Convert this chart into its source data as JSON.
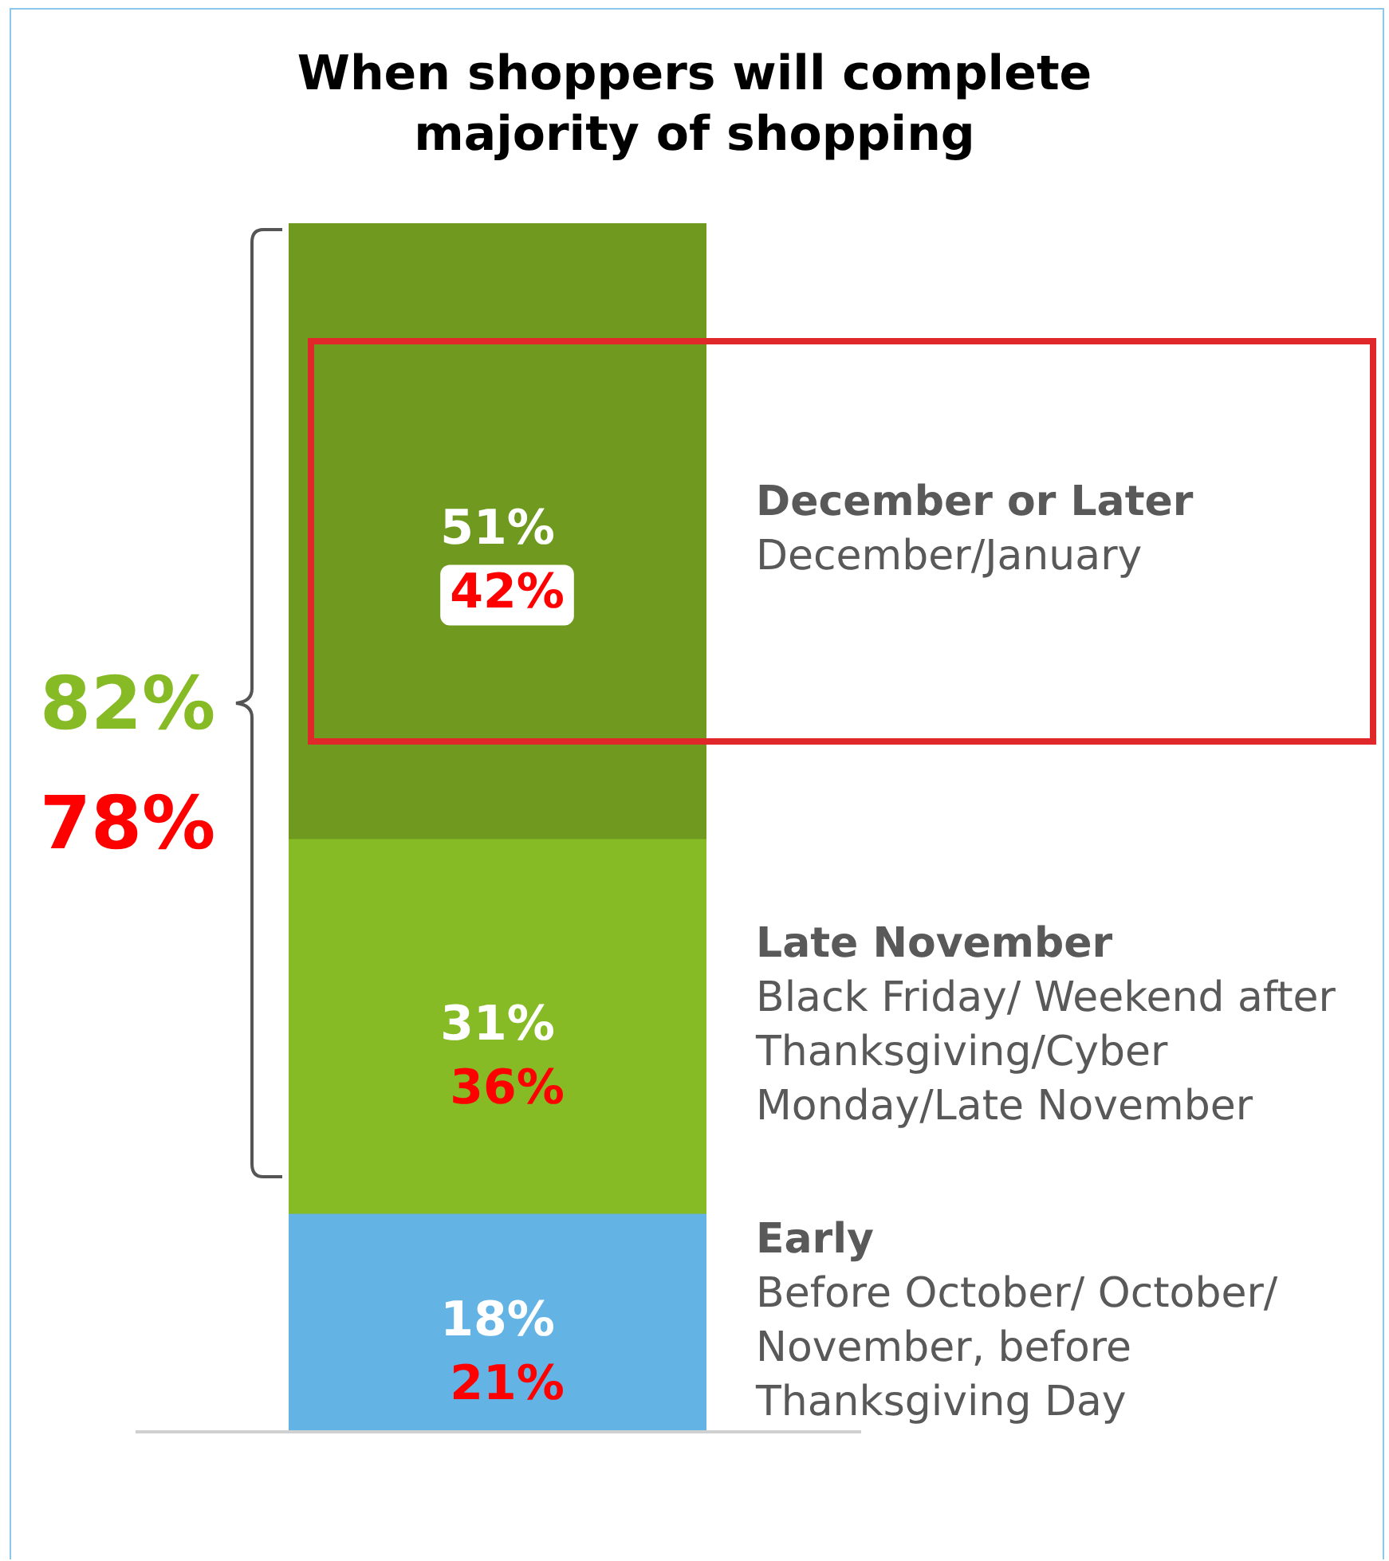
{
  "chart_data": {
    "type": "bar",
    "title": "When shoppers will complete majority of shopping",
    "categories": [
      null
    ],
    "stacked": true,
    "ylim": [
      0,
      100
    ],
    "tick_labels": false,
    "legend": false,
    "series": [
      {
        "name": "Early",
        "color": "#63b4e4",
        "values": [
          18
        ],
        "value_labels": [
          "18%"
        ]
      },
      {
        "name": "Late November",
        "color": "#86bb25",
        "values": [
          31
        ],
        "value_labels": [
          "31%"
        ]
      },
      {
        "name": "December or Later",
        "color": "#6f9a1f",
        "values": [
          51
        ],
        "value_labels": [
          "51%"
        ]
      }
    ],
    "annotations": [
      "Before October/ October/ November, before Thanksgiving Day",
      "Black Friday/ Weekend after Thanksgiving/Cyber Monday/Late November",
      "December/January",
      "82%",
      "78%",
      "21%",
      "36%",
      "42%"
    ]
  }
}
